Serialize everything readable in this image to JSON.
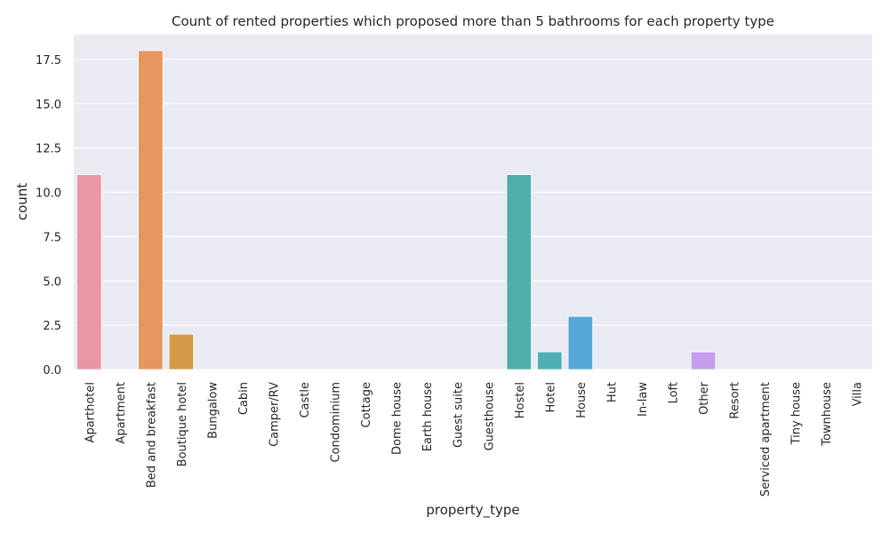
{
  "chart_data": {
    "type": "bar",
    "title": "Count of rented properties which proposed more than 5 bathrooms for each property type",
    "xlabel": "property_type",
    "ylabel": "count",
    "ylim": [
      0,
      18.9
    ],
    "yticks": [
      "0.0",
      "2.5",
      "5.0",
      "7.5",
      "10.0",
      "12.5",
      "15.0",
      "17.5"
    ],
    "grid": true,
    "categories": [
      "Aparthotel",
      "Apartment",
      "Bed and breakfast",
      "Boutique hotel",
      "Bungalow",
      "Cabin",
      "Camper/RV",
      "Castle",
      "Condominium",
      "Cottage",
      "Dome house",
      "Earth house",
      "Guest suite",
      "Guesthouse",
      "Hostel",
      "Hotel",
      "House",
      "Hut",
      "In-law",
      "Loft",
      "Other",
      "Resort",
      "Serviced apartment",
      "Tiny house",
      "Townhouse",
      "Villa"
    ],
    "values": [
      11,
      0,
      18,
      2,
      0,
      0,
      0,
      0,
      0,
      0,
      0,
      0,
      0,
      0,
      11,
      1,
      3,
      0,
      0,
      0,
      1,
      0,
      0,
      0,
      0,
      0
    ],
    "colors": [
      "#ea96a3",
      "#e9989a",
      "#e6965f",
      "#d49a49",
      "#c59f48",
      "#b8a447",
      "#a9a847",
      "#98ad48",
      "#7fb248",
      "#5db849",
      "#50b872",
      "#51b68f",
      "#52b59c",
      "#53b3a5",
      "#4eaeaa",
      "#4eb0b5",
      "#56a9d6",
      "#72a6e4",
      "#94a0ea",
      "#b29bf0",
      "#c59cee",
      "#d896eb",
      "#e391e6",
      "#e897d3",
      "#e99ac0",
      "#ea97b2"
    ],
    "background": "#eaeaf2"
  }
}
